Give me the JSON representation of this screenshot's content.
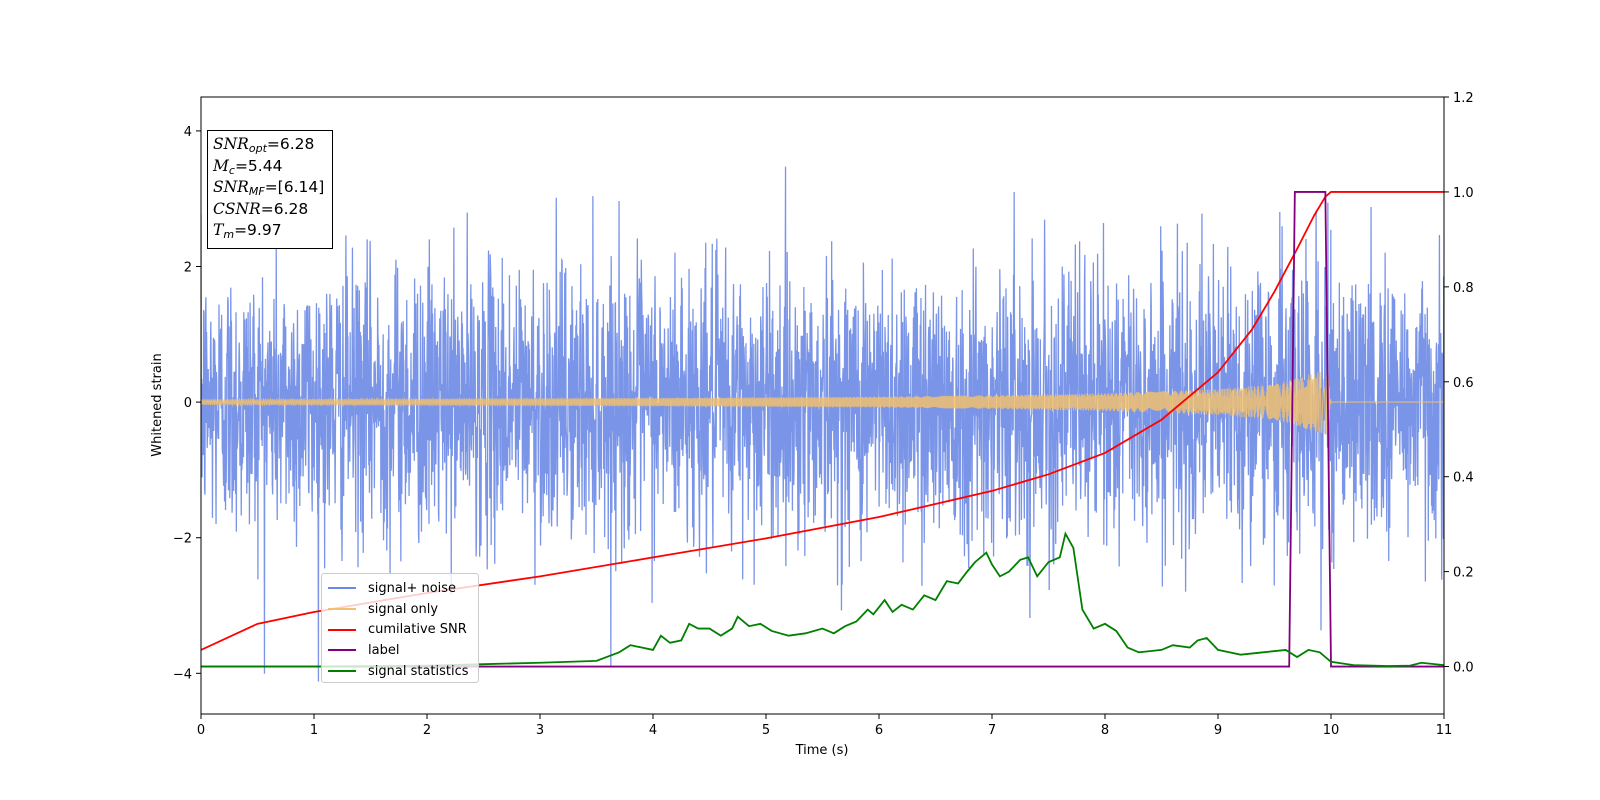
{
  "chart_data": {
    "type": "line",
    "xlabel": "Time (s)",
    "ylabel": "Whitened strain",
    "xlim": [
      0,
      11
    ],
    "ylim": [
      -4.6,
      4.5
    ],
    "y2lim": [
      -0.1,
      1.2
    ],
    "x_ticks": [
      "0",
      "1",
      "2",
      "3",
      "4",
      "5",
      "6",
      "7",
      "8",
      "9",
      "10",
      "11"
    ],
    "y_ticks": [
      "−4",
      "−2",
      "0",
      "2",
      "4"
    ],
    "y2_ticks": [
      "0.0",
      "0.2",
      "0.4",
      "0.6",
      "0.8",
      "1.0",
      "1.2"
    ],
    "grid": false,
    "legend_placement": "lower-left",
    "series": [
      {
        "name": "signal+ noise",
        "color": "#6b8ae6",
        "axis": "left",
        "description_values": {
          "x_range": [
            0,
            11
          ],
          "noise_std": 1.0,
          "peak_abs": 4.1
        }
      },
      {
        "name": "signal only",
        "color": "#f0c070",
        "axis": "left",
        "envelope": {
          "x": [
            0,
            2,
            4,
            5,
            6,
            7,
            8,
            9,
            9.5,
            9.9,
            9.97,
            10.0,
            11
          ],
          "amp": [
            0.04,
            0.05,
            0.06,
            0.07,
            0.08,
            0.1,
            0.13,
            0.19,
            0.26,
            0.45,
            0.5,
            0.0,
            0.0
          ]
        }
      },
      {
        "name": "cumilative SNR",
        "color": "#ff0000",
        "axis": "right",
        "x": [
          0,
          0.5,
          1,
          2,
          3,
          4,
          5,
          6,
          7,
          7.5,
          8,
          8.5,
          9,
          9.3,
          9.5,
          9.7,
          9.85,
          9.95,
          10.0,
          11
        ],
        "y": [
          0.035,
          0.09,
          0.115,
          0.155,
          0.19,
          0.23,
          0.27,
          0.315,
          0.37,
          0.405,
          0.45,
          0.52,
          0.62,
          0.71,
          0.79,
          0.88,
          0.95,
          0.99,
          1.0,
          1.0
        ]
      },
      {
        "name": "label",
        "color": "#800080",
        "axis": "right",
        "x": [
          0,
          9.63,
          9.68,
          9.95,
          10.0,
          11
        ],
        "y": [
          0.0,
          0.0,
          1.0,
          1.0,
          0.0,
          0.0
        ]
      },
      {
        "name": "signal statistics",
        "color": "#008000",
        "axis": "right",
        "x": [
          0,
          1,
          2,
          2.5,
          3,
          3.5,
          3.7,
          3.8,
          3.9,
          4.0,
          4.07,
          4.15,
          4.25,
          4.32,
          4.4,
          4.5,
          4.6,
          4.7,
          4.75,
          4.85,
          4.95,
          5.05,
          5.2,
          5.35,
          5.5,
          5.6,
          5.7,
          5.8,
          5.9,
          5.95,
          6.05,
          6.12,
          6.2,
          6.3,
          6.4,
          6.5,
          6.6,
          6.7,
          6.78,
          6.85,
          6.95,
          7.0,
          7.07,
          7.15,
          7.25,
          7.32,
          7.4,
          7.5,
          7.6,
          7.65,
          7.72,
          7.8,
          7.9,
          8.0,
          8.1,
          8.2,
          8.3,
          8.5,
          8.6,
          8.75,
          8.82,
          8.9,
          9.0,
          9.1,
          9.2,
          9.4,
          9.6,
          9.7,
          9.8,
          9.9,
          10.0,
          10.2,
          10.5,
          10.7,
          10.8,
          11
        ],
        "y": [
          0.0,
          0.0,
          0.002,
          0.005,
          0.008,
          0.012,
          0.03,
          0.045,
          0.04,
          0.035,
          0.065,
          0.05,
          0.055,
          0.09,
          0.08,
          0.08,
          0.065,
          0.08,
          0.105,
          0.085,
          0.09,
          0.075,
          0.065,
          0.07,
          0.08,
          0.07,
          0.085,
          0.095,
          0.12,
          0.11,
          0.14,
          0.115,
          0.13,
          0.12,
          0.15,
          0.14,
          0.18,
          0.175,
          0.2,
          0.22,
          0.24,
          0.215,
          0.19,
          0.2,
          0.225,
          0.23,
          0.19,
          0.22,
          0.23,
          0.28,
          0.25,
          0.12,
          0.08,
          0.09,
          0.075,
          0.04,
          0.03,
          0.035,
          0.045,
          0.04,
          0.055,
          0.06,
          0.035,
          0.03,
          0.025,
          0.03,
          0.035,
          0.02,
          0.035,
          0.03,
          0.01,
          0.003,
          0.001,
          0.002,
          0.008,
          0.003
        ]
      }
    ],
    "annotation": {
      "lines": [
        {
          "name": "SNR",
          "sub": "opt",
          "value": "=6.28"
        },
        {
          "name": "M",
          "sub": "c",
          "value": "=5.44"
        },
        {
          "name": "SNR",
          "sub": "MF",
          "value": "=[6.14]"
        },
        {
          "name": "CSNR",
          "sub": "",
          "value": "=6.28"
        },
        {
          "name": "T",
          "sub": "m",
          "value": "=9.97"
        }
      ]
    }
  }
}
